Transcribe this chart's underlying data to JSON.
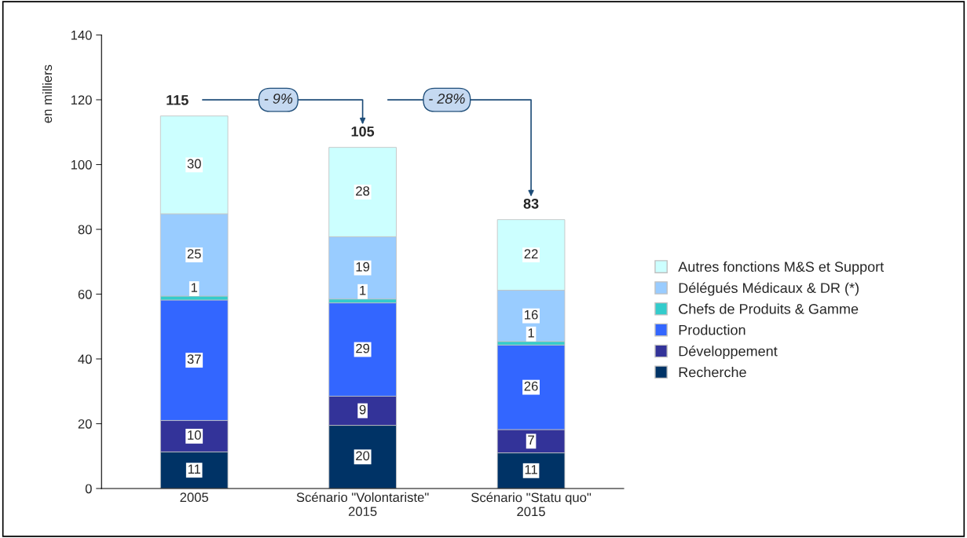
{
  "chart_data": {
    "type": "bar",
    "stacked": true,
    "ylabel": "en milliers",
    "categories": [
      "2005",
      "Scénario \"Volontariste\"\n2015",
      "Scénario \"Statu quo\"\n2015"
    ],
    "series": [
      {
        "name": "Recherche",
        "color": "#003366",
        "values": [
          11.3,
          19.5,
          11.0
        ],
        "value_labels": [
          "11",
          "20",
          "11"
        ]
      },
      {
        "name": "Développement",
        "color": "#333399",
        "values": [
          9.7,
          9.0,
          7.2
        ],
        "value_labels": [
          "10",
          "9",
          "7"
        ]
      },
      {
        "name": "Production",
        "color": "#3366ff",
        "values": [
          37.2,
          28.8,
          26.1
        ],
        "value_labels": [
          "37",
          "29",
          "26"
        ]
      },
      {
        "name": "Chefs de Produits & Gamme",
        "color": "#33cccc",
        "values": [
          1.2,
          1.2,
          1.1
        ],
        "value_labels": [
          "1",
          "1",
          "1"
        ]
      },
      {
        "name": "Délégués Médicaux & DR (*)",
        "color": "#99ccff",
        "values": [
          25.4,
          19.2,
          15.8
        ],
        "value_labels": [
          "25",
          "19",
          "16"
        ]
      },
      {
        "name": "Autres fonctions M&S et Support",
        "color": "#ccffff",
        "values": [
          30.2,
          27.6,
          21.8
        ],
        "value_labels": [
          "30",
          "28",
          "22"
        ]
      }
    ],
    "totals": [
      "115",
      "105",
      "83"
    ],
    "annotations": [
      "- 9%",
      "- 28%"
    ],
    "ylim": [
      0,
      140
    ],
    "yticks": [
      0,
      20,
      40,
      60,
      80,
      100,
      120,
      140
    ],
    "grid": false,
    "legend": "right",
    "marker": "square"
  }
}
